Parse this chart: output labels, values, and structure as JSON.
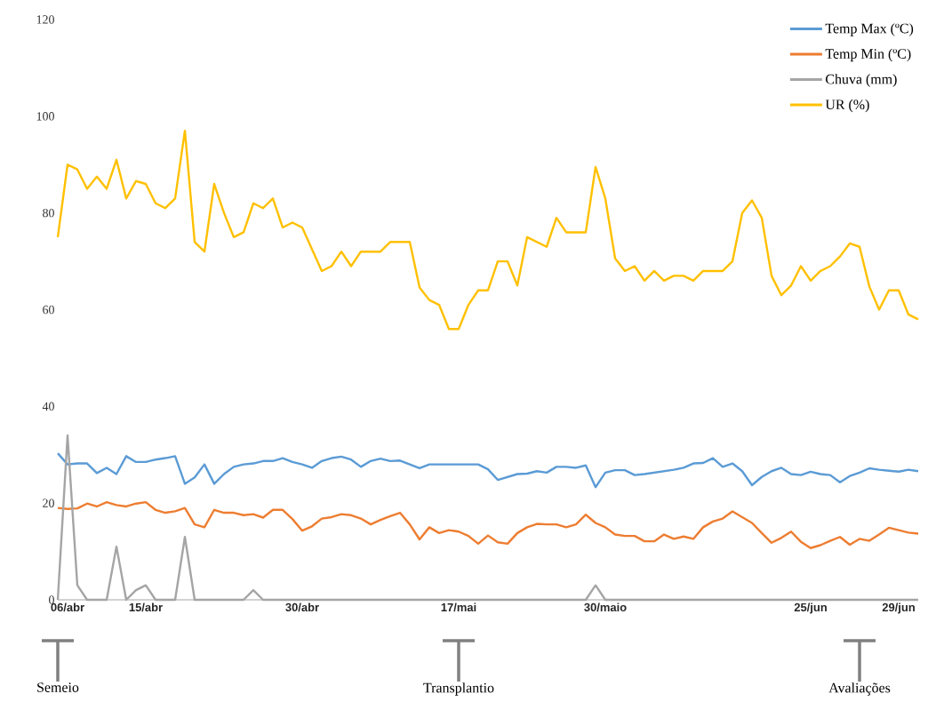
{
  "chart_data": {
    "type": "line",
    "categories": [
      null,
      "06/abr",
      null,
      null,
      null,
      null,
      null,
      null,
      null,
      "15/abr",
      null,
      null,
      null,
      null,
      null,
      null,
      null,
      null,
      null,
      null,
      null,
      null,
      null,
      null,
      null,
      "30/abr",
      null,
      null,
      null,
      null,
      null,
      null,
      null,
      null,
      null,
      null,
      null,
      null,
      null,
      null,
      null,
      "17/mai",
      null,
      null,
      null,
      null,
      null,
      null,
      null,
      null,
      null,
      null,
      null,
      null,
      null,
      null,
      "30/maio",
      null,
      null,
      null,
      null,
      null,
      null,
      null,
      null,
      null,
      null,
      null,
      null,
      null,
      null,
      null,
      null,
      null,
      null,
      null,
      null,
      "25/jun",
      null,
      null,
      null,
      null,
      null,
      null,
      null,
      null,
      "29/jun",
      null,
      null
    ],
    "series": [
      {
        "name": "Temp Max (ºC)",
        "color": "#5b9bd5",
        "values": [
          30.3,
          28,
          28.2,
          28.2,
          26.2,
          27.3,
          26,
          29.7,
          28.5,
          28.5,
          29,
          29.3,
          29.7,
          24,
          25.3,
          28,
          24,
          26,
          27.5,
          28,
          28.2,
          28.7,
          28.7,
          29.3,
          28.5,
          28,
          27.3,
          28.7,
          29.3,
          29.6,
          29,
          27.5,
          28.7,
          29.2,
          28.7,
          28.8,
          28,
          27.2,
          28,
          28,
          28,
          28,
          28,
          28,
          27,
          24.8,
          25.4,
          26,
          26.1,
          26.6,
          26.3,
          27.5,
          27.5,
          27.3,
          27.8,
          23.3,
          26.3,
          26.8,
          26.8,
          25.8,
          26,
          26.3,
          26.6,
          26.9,
          27.3,
          28.2,
          28.3,
          29.3,
          27.5,
          28.2,
          26.6,
          23.7,
          25.4,
          26.6,
          27.3,
          26,
          25.8,
          26.5,
          26,
          25.8,
          24.3,
          25.6,
          26.3,
          27.2,
          26.9,
          26.7,
          26.5,
          26.9,
          26.6
        ]
      },
      {
        "name": "Temp Min (ºC)",
        "color": "#ed7d31",
        "values": [
          19,
          18.8,
          18.9,
          19.9,
          19.3,
          20.2,
          19.6,
          19.3,
          19.9,
          20.2,
          18.6,
          18,
          18.3,
          19,
          15.6,
          15,
          18.6,
          18,
          18,
          17.5,
          17.7,
          17,
          18.6,
          18.6,
          16.7,
          14.3,
          15.2,
          16.8,
          17.1,
          17.7,
          17.5,
          16.8,
          15.6,
          16.5,
          17.3,
          18,
          15.6,
          12.5,
          15,
          13.8,
          14.4,
          14.1,
          13.2,
          11.6,
          13.3,
          11.9,
          11.6,
          13.8,
          15,
          15.7,
          15.6,
          15.6,
          15,
          15.6,
          17.6,
          15.9,
          15,
          13.5,
          13.2,
          13.2,
          12.1,
          12.1,
          13.5,
          12.6,
          13.1,
          12.6,
          15,
          16.2,
          16.8,
          18.3,
          17.1,
          15.9,
          13.8,
          11.8,
          12.8,
          14.1,
          12,
          10.7,
          11.3,
          12.2,
          13,
          11.4,
          12.6,
          12.2,
          13.5,
          14.9,
          14.4,
          13.9,
          13.7
        ]
      },
      {
        "name": "Chuva (mm)",
        "color": "#a5a5a5",
        "values": [
          0,
          34,
          3,
          0,
          0,
          0,
          11,
          0,
          2,
          3,
          0,
          0,
          0,
          13,
          0,
          0,
          0,
          0,
          0,
          0,
          2,
          0,
          0,
          0,
          0,
          0,
          0,
          0,
          0,
          0,
          0,
          0,
          0,
          0,
          0,
          0,
          0,
          0,
          0,
          0,
          0,
          0,
          0,
          0,
          0,
          0,
          0,
          0,
          0,
          0,
          0,
          0,
          0,
          0,
          0,
          3,
          0,
          0,
          0,
          0,
          0,
          0,
          0,
          0,
          0,
          0,
          0,
          0,
          0,
          0,
          0,
          0,
          0,
          0,
          0,
          0,
          0,
          0,
          0,
          0,
          0,
          0,
          0,
          0,
          0,
          0,
          0,
          0,
          0
        ]
      },
      {
        "name": "UR (%)",
        "color": "#ffc000",
        "values": [
          75,
          90,
          89,
          85,
          87.5,
          85,
          91,
          83,
          86.6,
          86,
          82,
          81,
          83,
          97,
          74,
          72,
          86,
          80,
          75,
          76,
          82,
          81,
          83,
          77,
          78,
          77,
          72.5,
          68,
          69,
          72,
          69,
          72,
          72,
          72,
          74,
          74,
          74,
          64.6,
          62,
          61,
          56,
          56,
          61,
          64,
          64,
          70,
          70,
          65,
          75,
          74,
          73,
          79,
          76,
          76,
          76,
          89.5,
          83,
          70.6,
          68,
          69,
          66,
          68,
          66,
          67,
          67,
          66,
          68,
          68,
          68,
          70,
          80,
          82.6,
          79,
          67,
          63,
          65,
          69,
          66,
          68,
          69,
          71,
          73.7,
          73,
          64.8,
          60,
          64,
          64,
          59,
          58
        ]
      }
    ],
    "ylim": [
      0,
      120
    ],
    "yticks": [
      0,
      20,
      40,
      60,
      80,
      100,
      120
    ],
    "legend": "top right",
    "annotations": [
      "Semeio",
      "Transplantio",
      "Avaliações"
    ]
  }
}
